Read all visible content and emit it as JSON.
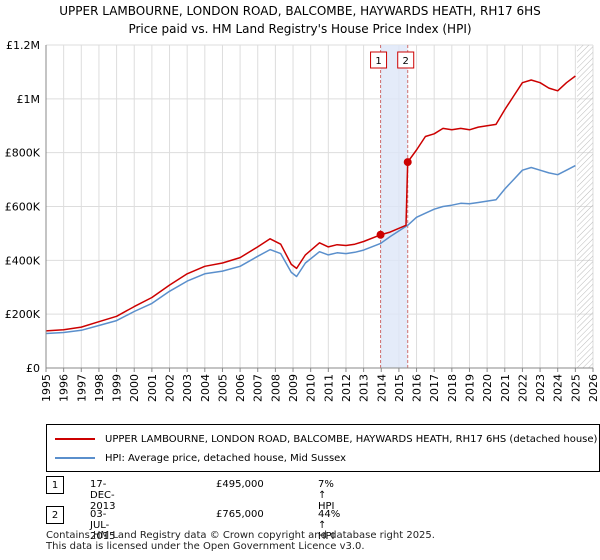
{
  "chart_data": {
    "type": "line",
    "title": "UPPER LAMBOURNE, LONDON ROAD, BALCOMBE, HAYWARDS HEATH, RH17 6HS",
    "subtitle": "Price paid vs. HM Land Registry's House Price Index (HPI)",
    "xlim": [
      1995,
      2026
    ],
    "ylim": [
      0,
      1200000
    ],
    "x_ticks": [
      1995,
      1996,
      1997,
      1998,
      1999,
      2000,
      2001,
      2002,
      2003,
      2004,
      2005,
      2006,
      2007,
      2008,
      2009,
      2010,
      2011,
      2012,
      2013,
      2014,
      2015,
      2016,
      2017,
      2018,
      2019,
      2020,
      2021,
      2022,
      2023,
      2024,
      2025,
      2026
    ],
    "y_ticks": [
      {
        "value": 0,
        "label": "£0"
      },
      {
        "value": 200000,
        "label": "£200K"
      },
      {
        "value": 400000,
        "label": "£400K"
      },
      {
        "value": 600000,
        "label": "£600K"
      },
      {
        "value": 800000,
        "label": "£800K"
      },
      {
        "value": 1000000,
        "label": "£1M"
      },
      {
        "value": 1200000,
        "label": "£1.2M"
      }
    ],
    "grid": true,
    "future_hatch_from": 2025.1,
    "sale_band": [
      2013.96,
      2015.5
    ],
    "series": [
      {
        "name": "UPPER LAMBOURNE, LONDON ROAD, BALCOMBE, HAYWARDS HEATH, RH17 6HS (detached house)",
        "color": "#cc0000",
        "points": [
          [
            1995,
            138000
          ],
          [
            1996,
            142000
          ],
          [
            1997,
            152000
          ],
          [
            1998,
            172000
          ],
          [
            1999,
            192000
          ],
          [
            2000,
            228000
          ],
          [
            2001,
            262000
          ],
          [
            2002,
            308000
          ],
          [
            2003,
            350000
          ],
          [
            2004,
            378000
          ],
          [
            2005,
            390000
          ],
          [
            2006,
            410000
          ],
          [
            2007,
            450000
          ],
          [
            2007.7,
            480000
          ],
          [
            2008.3,
            460000
          ],
          [
            2008.9,
            385000
          ],
          [
            2009.2,
            370000
          ],
          [
            2009.7,
            420000
          ],
          [
            2010.5,
            465000
          ],
          [
            2011,
            450000
          ],
          [
            2011.5,
            458000
          ],
          [
            2012,
            455000
          ],
          [
            2012.5,
            460000
          ],
          [
            2013,
            470000
          ],
          [
            2013.96,
            495000
          ],
          [
            2014.5,
            505000
          ],
          [
            2015.4,
            530000
          ],
          [
            2015.5,
            765000
          ],
          [
            2016,
            810000
          ],
          [
            2016.5,
            860000
          ],
          [
            2017,
            870000
          ],
          [
            2017.5,
            890000
          ],
          [
            2018,
            885000
          ],
          [
            2018.5,
            890000
          ],
          [
            2019,
            885000
          ],
          [
            2019.5,
            895000
          ],
          [
            2020,
            900000
          ],
          [
            2020.5,
            905000
          ],
          [
            2021,
            960000
          ],
          [
            2021.5,
            1010000
          ],
          [
            2022,
            1060000
          ],
          [
            2022.5,
            1070000
          ],
          [
            2023,
            1060000
          ],
          [
            2023.5,
            1040000
          ],
          [
            2024,
            1030000
          ],
          [
            2024.5,
            1060000
          ],
          [
            2025,
            1085000
          ]
        ]
      },
      {
        "name": "HPI: Average price, detached house, Mid Sussex",
        "color": "#5a8fcc",
        "points": [
          [
            1995,
            128000
          ],
          [
            1996,
            132000
          ],
          [
            1997,
            140000
          ],
          [
            1998,
            158000
          ],
          [
            1999,
            176000
          ],
          [
            2000,
            210000
          ],
          [
            2001,
            240000
          ],
          [
            2002,
            285000
          ],
          [
            2003,
            323000
          ],
          [
            2004,
            350000
          ],
          [
            2005,
            360000
          ],
          [
            2006,
            378000
          ],
          [
            2007,
            415000
          ],
          [
            2007.7,
            440000
          ],
          [
            2008.3,
            425000
          ],
          [
            2008.9,
            355000
          ],
          [
            2009.2,
            340000
          ],
          [
            2009.7,
            390000
          ],
          [
            2010.5,
            432000
          ],
          [
            2011,
            420000
          ],
          [
            2011.5,
            428000
          ],
          [
            2012,
            425000
          ],
          [
            2012.5,
            430000
          ],
          [
            2013,
            438000
          ],
          [
            2013.96,
            463000
          ],
          [
            2014.5,
            488000
          ],
          [
            2015.5,
            530000
          ],
          [
            2016,
            560000
          ],
          [
            2016.5,
            575000
          ],
          [
            2017,
            590000
          ],
          [
            2017.5,
            600000
          ],
          [
            2018,
            605000
          ],
          [
            2018.5,
            612000
          ],
          [
            2019,
            610000
          ],
          [
            2019.5,
            615000
          ],
          [
            2020,
            620000
          ],
          [
            2020.5,
            625000
          ],
          [
            2021,
            665000
          ],
          [
            2021.5,
            700000
          ],
          [
            2022,
            735000
          ],
          [
            2022.5,
            745000
          ],
          [
            2023,
            735000
          ],
          [
            2023.5,
            725000
          ],
          [
            2024,
            718000
          ],
          [
            2024.5,
            735000
          ],
          [
            2025,
            752000
          ]
        ]
      }
    ],
    "sales": [
      {
        "id": "1",
        "x": 2013.96,
        "y": 495000
      },
      {
        "id": "2",
        "x": 2015.5,
        "y": 765000
      }
    ]
  },
  "legend": {
    "items": [
      {
        "label": "UPPER LAMBOURNE, LONDON ROAD, BALCOMBE, HAYWARDS HEATH, RH17 6HS (detached house)",
        "color": "#cc0000"
      },
      {
        "label": "HPI: Average price, detached house, Mid Sussex",
        "color": "#5a8fcc"
      }
    ]
  },
  "transactions": [
    {
      "id": "1",
      "date": "17-DEC-2013",
      "price": "£495,000",
      "hpi": "7% ↑ HPI"
    },
    {
      "id": "2",
      "date": "03-JUL-2015",
      "price": "£765,000",
      "hpi": "44% ↑ HPI"
    }
  ],
  "footer": {
    "line1": "Contains HM Land Registry data © Crown copyright and database right 2025.",
    "line2": "This data is licensed under the Open Government Licence v3.0."
  }
}
